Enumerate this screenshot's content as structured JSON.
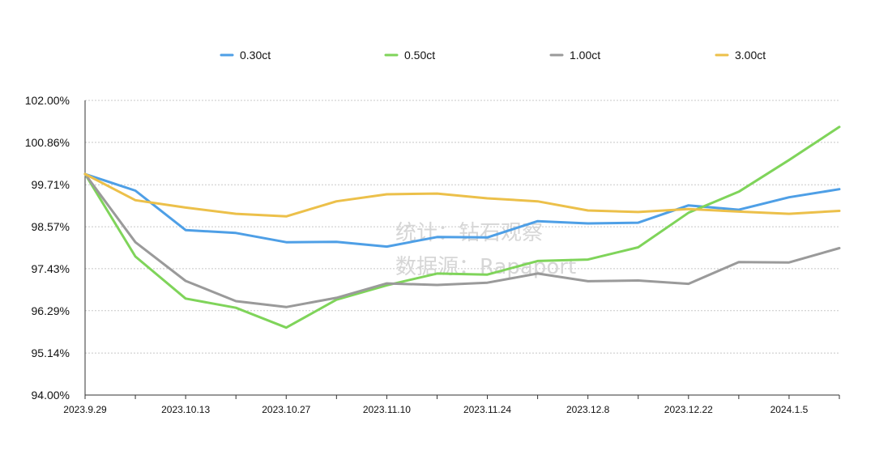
{
  "chart_data": {
    "type": "line",
    "title": "",
    "xlabel": "",
    "ylabel": "",
    "ylim": [
      94.0,
      102.0
    ],
    "y_ticks": [
      "102.00%",
      "100.86%",
      "99.71%",
      "98.57%",
      "97.43%",
      "96.29%",
      "95.14%",
      "94.00%"
    ],
    "y_tick_values": [
      102.0,
      100.86,
      99.71,
      98.57,
      97.43,
      96.29,
      95.14,
      94.0
    ],
    "x_tick_labels": [
      "2023.9.29",
      "2023.10.13",
      "2023.10.27",
      "2023.11.10",
      "2023.11.24",
      "2023.12.8",
      "2023.12.22",
      "2024.1.5"
    ],
    "x_tick_index": [
      0,
      2,
      4,
      6,
      8,
      10,
      12,
      14
    ],
    "x_count": 16,
    "grid": true,
    "legend_position": "top",
    "series": [
      {
        "name": "0.30ct",
        "color": "#4e9fe6",
        "values": [
          100.0,
          99.55,
          98.48,
          98.4,
          98.15,
          98.16,
          98.03,
          98.29,
          98.28,
          98.72,
          98.66,
          98.68,
          99.15,
          99.03,
          99.37,
          99.59
        ]
      },
      {
        "name": "0.50ct",
        "color": "#7fd45a",
        "values": [
          100.0,
          97.76,
          96.62,
          96.37,
          95.83,
          96.59,
          96.98,
          97.3,
          97.27,
          97.64,
          97.68,
          98.01,
          98.95,
          99.52,
          100.38,
          101.28
        ]
      },
      {
        "name": "1.00ct",
        "color": "#9a9a9a",
        "values": [
          100.0,
          98.15,
          97.1,
          96.55,
          96.39,
          96.64,
          97.03,
          96.99,
          97.05,
          97.3,
          97.09,
          97.11,
          97.02,
          97.61,
          97.6,
          97.99
        ]
      },
      {
        "name": "3.00ct",
        "color": "#ecc04a",
        "values": [
          100.0,
          99.29,
          99.09,
          98.92,
          98.85,
          99.26,
          99.45,
          99.47,
          99.34,
          99.26,
          99.01,
          98.97,
          99.05,
          98.98,
          98.92,
          99.0
        ]
      }
    ],
    "watermark": [
      "统计：钻石观察",
      "数据源：Rapaport"
    ]
  }
}
